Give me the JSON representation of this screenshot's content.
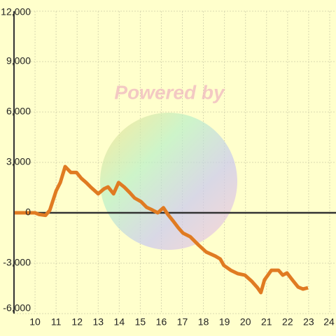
{
  "chart_data": {
    "type": "line",
    "watermark": "Powered by",
    "x": [
      9.0,
      10.0,
      10.2,
      10.5,
      10.7,
      11.0,
      11.2,
      11.43,
      11.7,
      11.97,
      12.2,
      12.43,
      12.67,
      13.0,
      13.27,
      13.47,
      13.73,
      13.97,
      14.23,
      14.5,
      14.73,
      15.03,
      15.3,
      15.57,
      15.83,
      16.1,
      16.3,
      16.57,
      16.8,
      17.03,
      17.37,
      17.77,
      18.13,
      18.57,
      18.8,
      18.97,
      19.3,
      19.63,
      19.97,
      20.3,
      20.57,
      20.73,
      20.9,
      21.23,
      21.57,
      21.77,
      21.97,
      22.23,
      22.5,
      22.73,
      22.97
    ],
    "series": [
      {
        "color": "#e07b22",
        "values": [
          0,
          0,
          -100,
          -150,
          150,
          1300,
          1800,
          2750,
          2400,
          2400,
          2050,
          1800,
          1500,
          1130,
          1420,
          1540,
          1130,
          1800,
          1540,
          1200,
          880,
          670,
          330,
          170,
          0,
          300,
          -80,
          -500,
          -880,
          -1210,
          -1420,
          -1920,
          -2330,
          -2580,
          -2750,
          -3130,
          -3420,
          -3620,
          -3710,
          -4080,
          -4460,
          -4750,
          -4000,
          -3420,
          -3420,
          -3710,
          -3580,
          -4000,
          -4420,
          -4540,
          -4460
        ]
      }
    ],
    "xlim": [
      9,
      24.3
    ],
    "xticks": [
      10,
      11,
      12,
      13,
      14,
      15,
      16,
      17,
      18,
      19,
      20,
      21,
      22,
      23,
      24
    ],
    "ylim": [
      -6000,
      12000
    ],
    "yticks": [
      {
        "value": -6000,
        "label": "-6,000"
      },
      {
        "value": -3000,
        "label": "-3,000"
      },
      0,
      {
        "value": 3000,
        "label": "3,000"
      },
      {
        "value": 6000,
        "label": "6,000"
      },
      {
        "value": 9000,
        "label": "9,000"
      },
      {
        "value": 12000,
        "label": "12,000"
      }
    ],
    "grid": true
  }
}
